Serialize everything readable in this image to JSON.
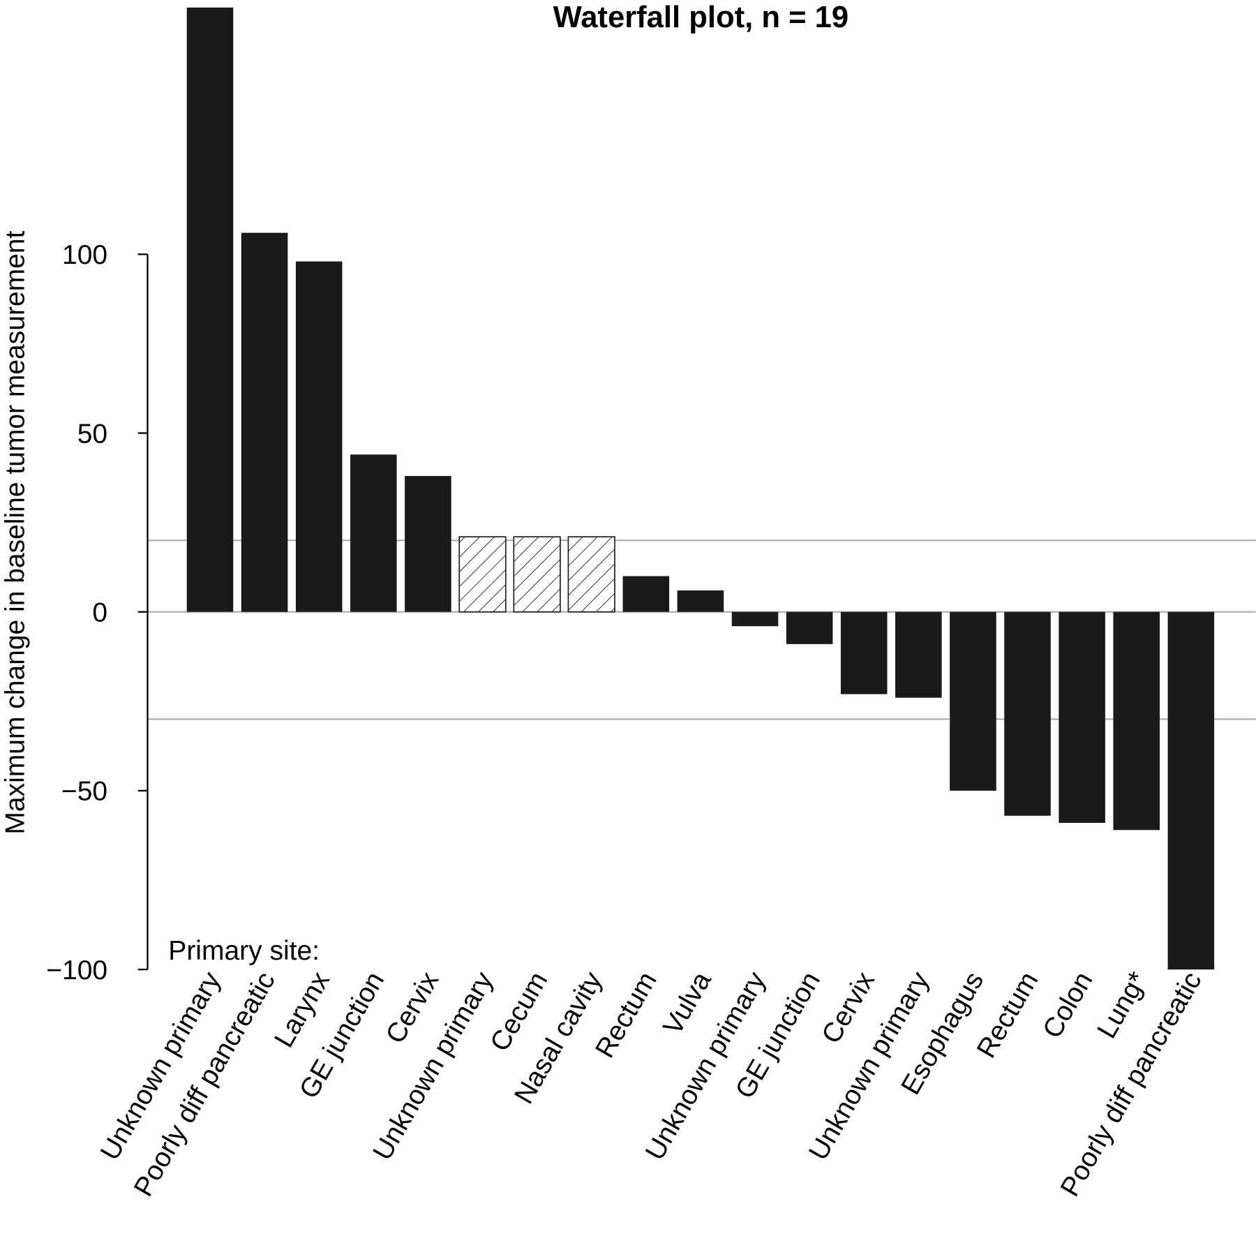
{
  "chart_data": {
    "type": "bar",
    "title": "Waterfall plot, n =  19",
    "xlabel": "Primary site:",
    "ylabel": "Maximum change in baseline tumor measurement",
    "ylim": [
      -100,
      170
    ],
    "yticks": [
      100,
      50,
      0,
      -50,
      -100
    ],
    "ytick_labels": [
      "100",
      "50",
      "0",
      "−50",
      "−100"
    ],
    "reference_lines": [
      20,
      0,
      -30
    ],
    "grid": false,
    "categories": [
      "Unknown primary",
      "Poorly diff pancreatic",
      "Larynx",
      "GE junction",
      "Cervix",
      "Unknown primary",
      "Cecum",
      "Nasal cavity",
      "Rectum",
      "Vulva",
      "Unknown primary",
      "GE junction",
      "Cervix",
      "Unknown primary",
      "Esophagus",
      "Rectum",
      "Colon",
      "Lung*",
      "Poorly diff pancreatic"
    ],
    "values": [
      169,
      106,
      98,
      44,
      38,
      21,
      21,
      21,
      10,
      6,
      -4,
      -9,
      -23,
      -24,
      -50,
      -57,
      -59,
      -61,
      -100
    ],
    "hatched": [
      false,
      false,
      false,
      false,
      false,
      true,
      true,
      true,
      false,
      false,
      false,
      false,
      false,
      false,
      false,
      false,
      false,
      false,
      false
    ],
    "colors": {
      "bar": "#1a1a1a",
      "refline": "#b0b0b0",
      "axis": "#000000"
    }
  }
}
